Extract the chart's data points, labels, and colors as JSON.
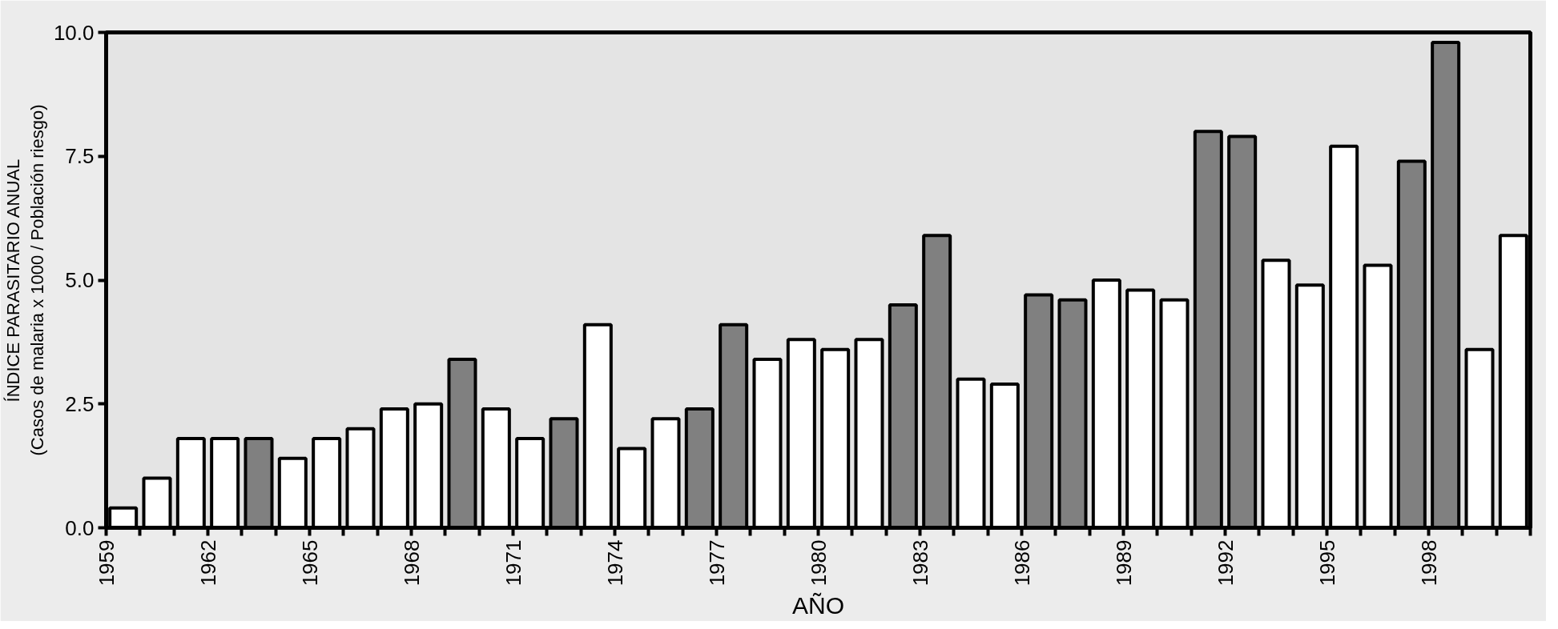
{
  "chart_data": {
    "type": "bar",
    "xlabel": "AÑO",
    "ylabel": "ÍNDICE PARASITARIO ANUAL\n(Casos de malaria x 1000 / Población riesgo)",
    "categories": [
      "1959",
      null,
      null,
      "1962",
      null,
      null,
      "1965",
      null,
      null,
      "1968",
      null,
      null,
      "1971",
      null,
      null,
      "1974",
      null,
      null,
      "1977",
      null,
      null,
      "1980",
      null,
      null,
      "1983",
      null,
      null,
      "1986",
      null,
      null,
      "1989",
      null,
      null,
      "1992",
      null,
      null,
      "1995",
      null,
      null,
      "1998",
      null,
      null
    ],
    "values": [
      0.4,
      1.0,
      1.8,
      1.8,
      1.8,
      1.4,
      1.8,
      2.0,
      2.4,
      2.5,
      3.4,
      2.4,
      1.8,
      2.2,
      4.1,
      1.6,
      2.2,
      2.4,
      4.1,
      3.4,
      3.8,
      3.6,
      3.8,
      4.5,
      5.9,
      3.0,
      2.9,
      4.7,
      4.6,
      5.0,
      4.8,
      4.6,
      8.0,
      7.9,
      5.4,
      4.9,
      7.7,
      5.3,
      7.4,
      9.8,
      3.6,
      5.9
    ],
    "colors": [
      "#ffffff",
      "#ffffff",
      "#ffffff",
      "#ffffff",
      "#808080",
      "#ffffff",
      "#ffffff",
      "#ffffff",
      "#ffffff",
      "#ffffff",
      "#808080",
      "#ffffff",
      "#ffffff",
      "#808080",
      "#ffffff",
      "#ffffff",
      "#ffffff",
      "#808080",
      "#808080",
      "#ffffff",
      "#ffffff",
      "#ffffff",
      "#ffffff",
      "#808080",
      "#808080",
      "#ffffff",
      "#ffffff",
      "#808080",
      "#808080",
      "#ffffff",
      "#ffffff",
      "#ffffff",
      "#808080",
      "#808080",
      "#ffffff",
      "#ffffff",
      "#ffffff",
      "#ffffff",
      "#808080",
      "#808080",
      "#ffffff",
      "#ffffff"
    ],
    "ylim": [
      0,
      10
    ],
    "yticks": [
      {
        "value": 0,
        "label": "0.0"
      },
      {
        "value": 2.5,
        "label": "2.5"
      },
      {
        "value": 5,
        "label": "5.0"
      },
      {
        "value": 7.5,
        "label": "7.5"
      },
      {
        "value": 10,
        "label": "10.0"
      }
    ],
    "grid": false
  }
}
